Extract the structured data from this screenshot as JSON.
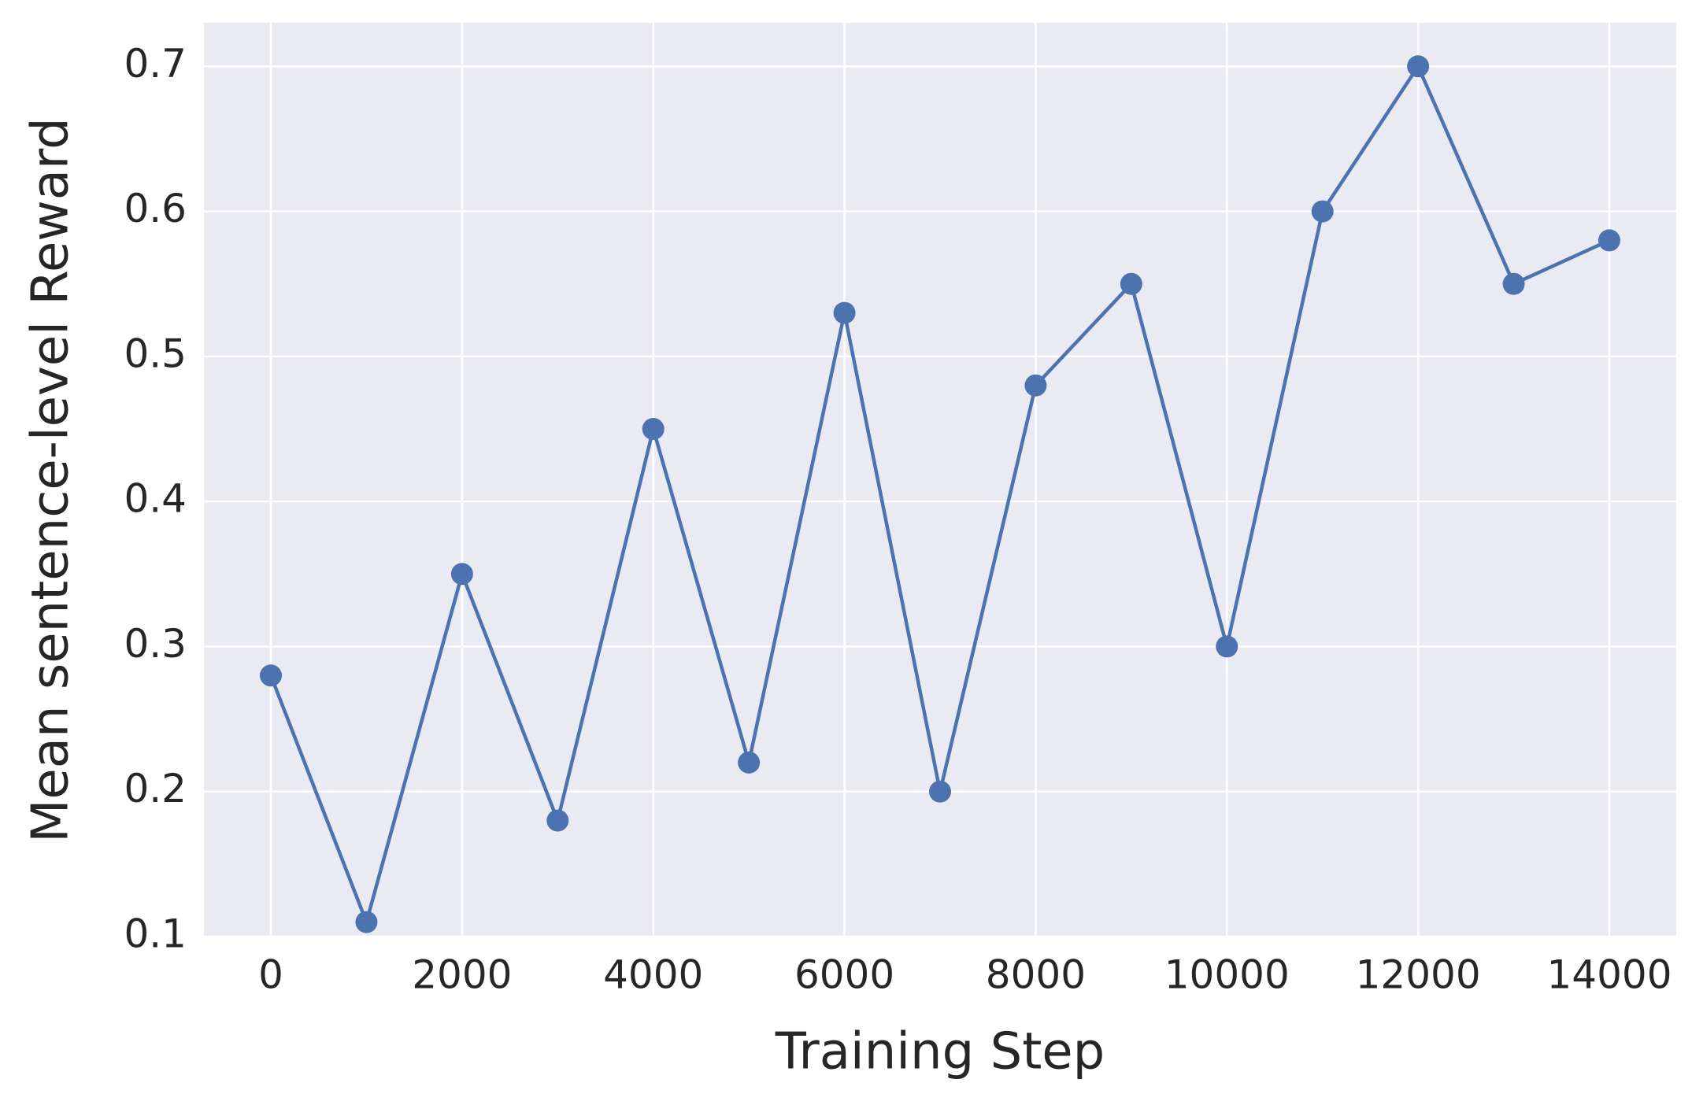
{
  "chart_data": {
    "type": "line",
    "x_label": "Training Step",
    "y_label": "Mean sentence-level Reward",
    "x": [
      0,
      1000,
      2000,
      3000,
      4000,
      5000,
      6000,
      7000,
      8000,
      9000,
      10000,
      11000,
      12000,
      13000,
      14000
    ],
    "series": [
      {
        "name": "Mean sentence-level Reward",
        "color": "#4c72b0",
        "values": [
          0.28,
          0.11,
          0.35,
          0.18,
          0.45,
          0.22,
          0.53,
          0.2,
          0.48,
          0.55,
          0.3,
          0.6,
          0.7,
          0.55,
          0.58
        ]
      }
    ],
    "xlim": [
      -700,
      14700
    ],
    "ylim": [
      0.1,
      0.73
    ],
    "xticks": [
      0,
      2000,
      4000,
      6000,
      8000,
      10000,
      12000,
      14000
    ],
    "yticks": [
      0.1,
      0.2,
      0.3,
      0.4,
      0.5,
      0.6,
      0.7
    ],
    "grid": true,
    "background": "#eaeaf2"
  }
}
